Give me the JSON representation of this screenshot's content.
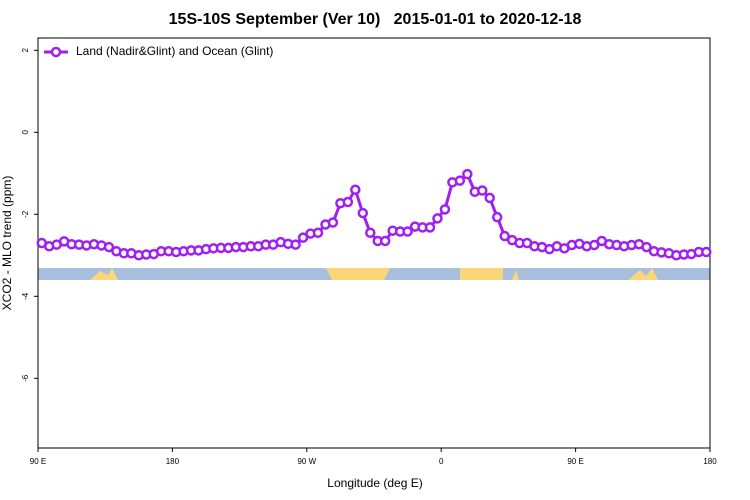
{
  "chart_data": {
    "type": "line",
    "title": "15S-10S September (Ver 10)   2015-01-01 to 2020-12-18",
    "x_label": "Longitude (deg E)",
    "y_label": "XCO2 - MLO trend (ppm)",
    "x": [
      92.5,
      97.5,
      102.5,
      107.5,
      112.5,
      117.5,
      122.5,
      127.5,
      132.5,
      137.5,
      142.5,
      147.5,
      152.5,
      157.5,
      162.5,
      167.5,
      172.5,
      177.5,
      182.5,
      187.5,
      192.5,
      197.5,
      202.5,
      207.5,
      212.5,
      217.5,
      222.5,
      227.5,
      232.5,
      237.5,
      242.5,
      247.5,
      252.5,
      257.5,
      262.5,
      267.5,
      272.5,
      277.5,
      282.5,
      287.5,
      292.5,
      297.5,
      302.5,
      307.5,
      312.5,
      317.5,
      322.5,
      327.5,
      332.5,
      337.5,
      342.5,
      347.5,
      352.5,
      357.5,
      362.5,
      367.5,
      372.5,
      377.5,
      382.5,
      387.5,
      392.5,
      397.5,
      402.5,
      407.5,
      412.5,
      417.5,
      422.5,
      427.5,
      432.5,
      437.5,
      442.5,
      447.5,
      452.5,
      457.5,
      462.5,
      467.5,
      472.5,
      477.5,
      482.5,
      487.5,
      492.5,
      497.5,
      502.5,
      507.5,
      512.5,
      517.5,
      522.5,
      527.5,
      532.5,
      537.5
    ],
    "series": [
      {
        "name": "Land (Nadir&Glint) and Ocean (Glint)",
        "color": "#a020f0",
        "values": [
          -2.7,
          -2.78,
          -2.74,
          -2.66,
          -2.73,
          -2.74,
          -2.76,
          -2.73,
          -2.76,
          -2.8,
          -2.9,
          -2.95,
          -2.95,
          -3.0,
          -2.98,
          -2.97,
          -2.9,
          -2.9,
          -2.92,
          -2.9,
          -2.88,
          -2.88,
          -2.85,
          -2.83,
          -2.82,
          -2.82,
          -2.8,
          -2.8,
          -2.78,
          -2.78,
          -2.74,
          -2.74,
          -2.68,
          -2.72,
          -2.74,
          -2.57,
          -2.47,
          -2.45,
          -2.25,
          -2.2,
          -1.73,
          -1.7,
          -1.4,
          -1.97,
          -2.45,
          -2.65,
          -2.65,
          -2.4,
          -2.42,
          -2.42,
          -2.3,
          -2.32,
          -2.32,
          -2.1,
          -1.88,
          -1.22,
          -1.18,
          -1.02,
          -1.45,
          -1.42,
          -1.6,
          -2.07,
          -2.53,
          -2.63,
          -2.7,
          -2.7,
          -2.78,
          -2.8,
          -2.85,
          -2.78,
          -2.83,
          -2.75,
          -2.72,
          -2.78,
          -2.75,
          -2.65,
          -2.73,
          -2.75,
          -2.78,
          -2.75,
          -2.73,
          -2.8,
          -2.9,
          -2.93,
          -2.95,
          -3.0,
          -2.98,
          -2.97,
          -2.92,
          -2.92
        ]
      }
    ],
    "xlim": [
      90,
      540
    ],
    "xticks": [
      {
        "value": 90,
        "label": "90 E"
      },
      {
        "value": 180,
        "label": "180"
      },
      {
        "value": 270,
        "label": "90 W"
      },
      {
        "value": 360,
        "label": "0"
      },
      {
        "value": 450,
        "label": "90 E"
      },
      {
        "value": 540,
        "label": "180"
      }
    ],
    "ylim": [
      -7.7,
      2.3
    ],
    "yticks": [
      2,
      0,
      -2,
      -4,
      -6
    ],
    "legend": "top-left"
  }
}
